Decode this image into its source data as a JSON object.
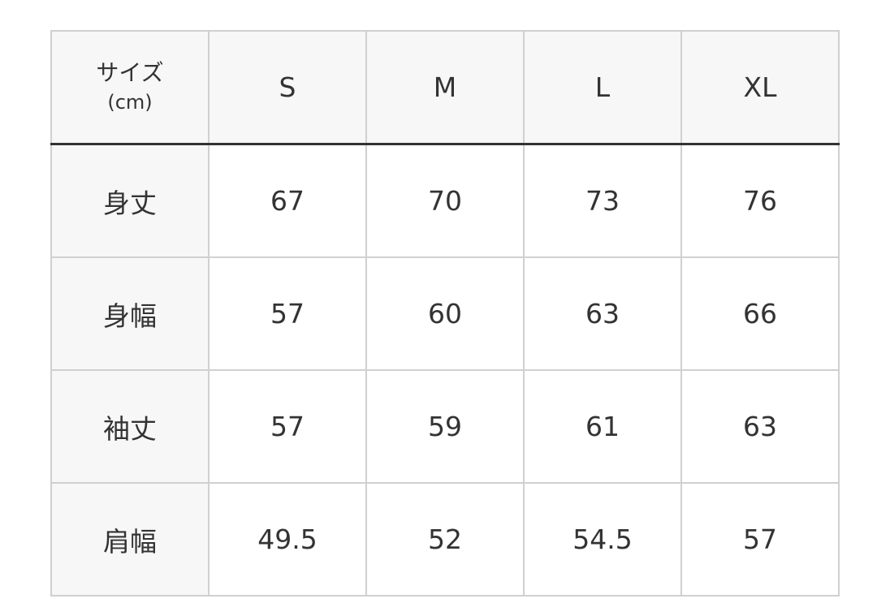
{
  "table": {
    "corner_label": "サイズ",
    "corner_unit": "(cm)",
    "sizes": [
      "S",
      "M",
      "L",
      "XL"
    ],
    "rows": [
      {
        "label": "身丈",
        "values": [
          "67",
          "70",
          "73",
          "76"
        ]
      },
      {
        "label": "身幅",
        "values": [
          "57",
          "60",
          "63",
          "66"
        ]
      },
      {
        "label": "袖丈",
        "values": [
          "57",
          "59",
          "61",
          "63"
        ]
      },
      {
        "label": "肩幅",
        "values": [
          "49.5",
          "52",
          "54.5",
          "57"
        ]
      }
    ]
  }
}
